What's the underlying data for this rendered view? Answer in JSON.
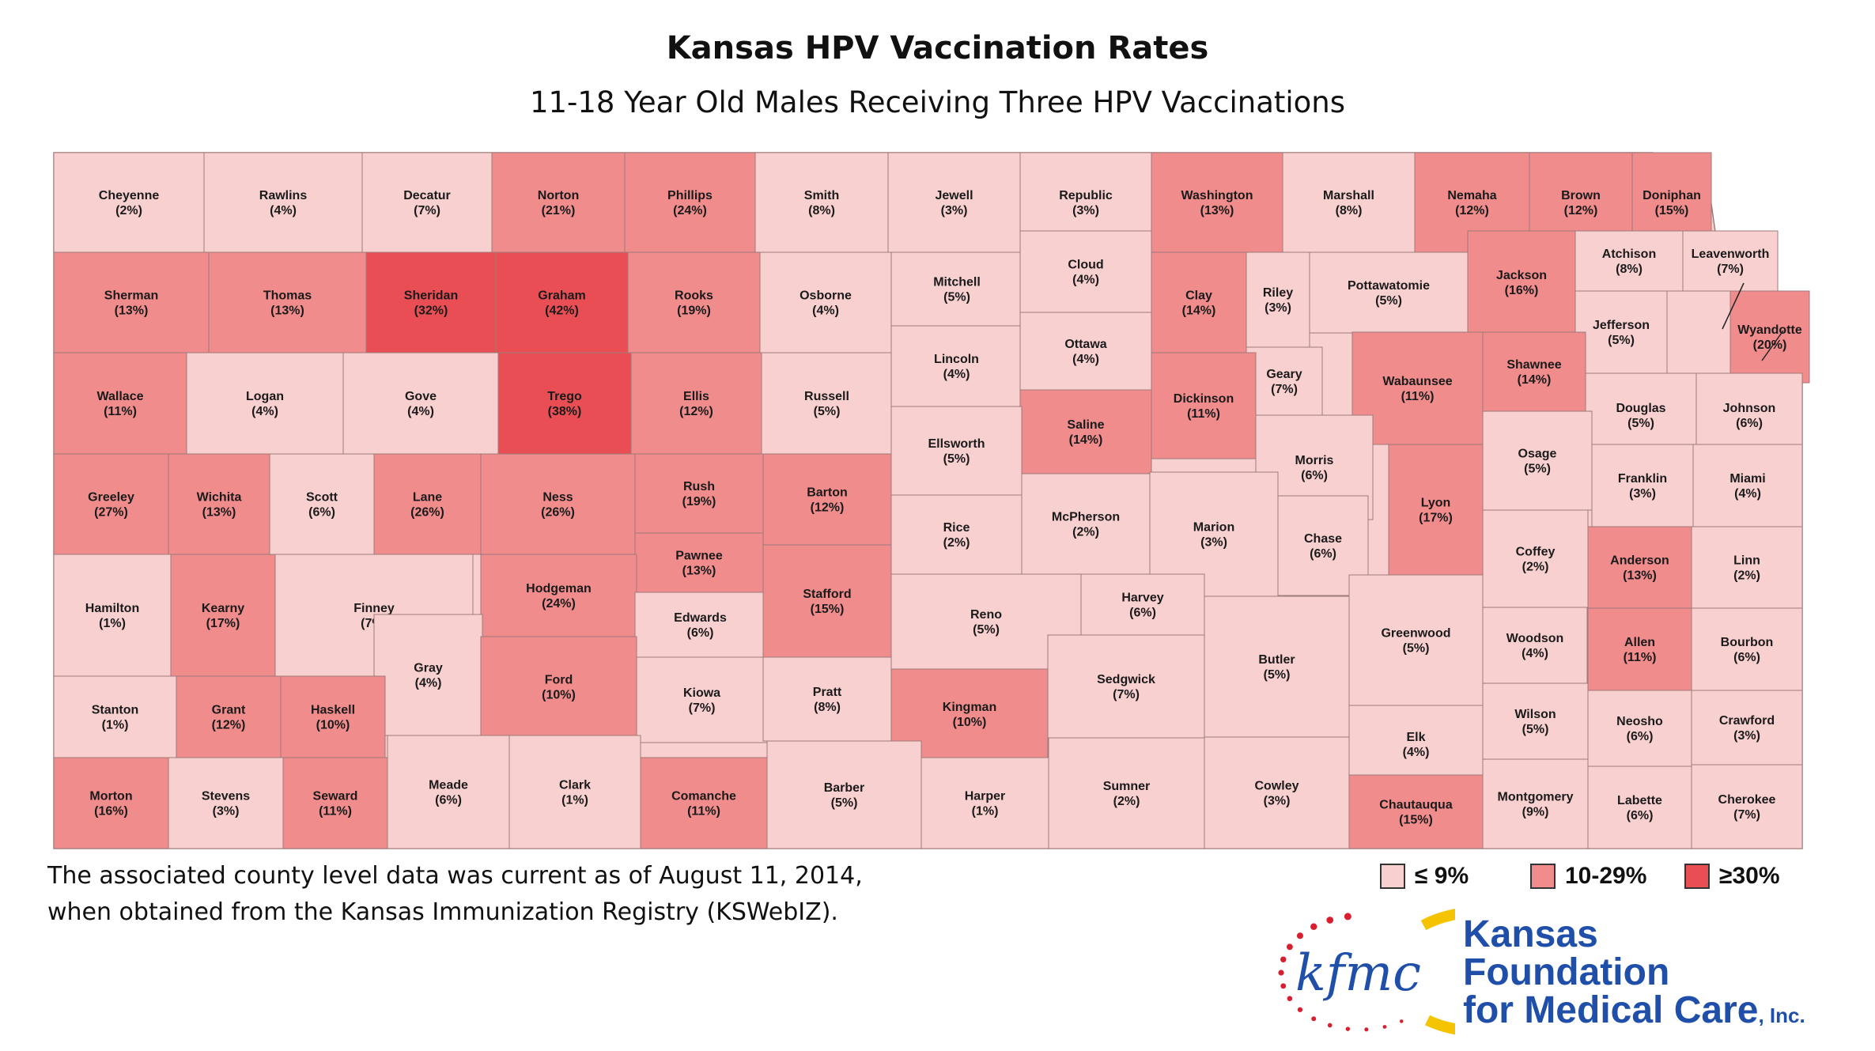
{
  "title": "Kansas HPV Vaccination Rates",
  "subtitle": "11-18 Year Old Males Receiving Three HPV Vaccinations",
  "note_line1": "The associated county level data was current as of August 11, 2014,",
  "note_line2": "when obtained from the Kansas Immunization Registry (KSWebIZ).",
  "colors": {
    "low": "#f9d0d0",
    "mid": "#f08c8c",
    "high": "#e84e54",
    "border": "#9e7a7a",
    "logo_blue": "#1f4fa8",
    "logo_red": "#d91f2f",
    "logo_yellow": "#f5c400"
  },
  "legend": [
    {
      "label": "≤  9%",
      "class": "low"
    },
    {
      "label": "10-29%",
      "class": "mid"
    },
    {
      "label": "≥30%",
      "class": "high"
    }
  ],
  "logo": {
    "mark": "kfmc",
    "line1": "Kansas",
    "line2": "Foundation",
    "line3": "for Medical Care",
    "line3_suffix": ", Inc."
  },
  "counties": [
    {
      "name": "Cheyenne",
      "pct": 2
    },
    {
      "name": "Rawlins",
      "pct": 4
    },
    {
      "name": "Decatur",
      "pct": 7
    },
    {
      "name": "Norton",
      "pct": 21
    },
    {
      "name": "Phillips",
      "pct": 24
    },
    {
      "name": "Smith",
      "pct": 8
    },
    {
      "name": "Jewell",
      "pct": 3
    },
    {
      "name": "Republic",
      "pct": 3
    },
    {
      "name": "Washington",
      "pct": 13
    },
    {
      "name": "Marshall",
      "pct": 8
    },
    {
      "name": "Nemaha",
      "pct": 12
    },
    {
      "name": "Brown",
      "pct": 12
    },
    {
      "name": "Doniphan",
      "pct": 15
    },
    {
      "name": "Sherman",
      "pct": 13
    },
    {
      "name": "Thomas",
      "pct": 13
    },
    {
      "name": "Sheridan",
      "pct": 32
    },
    {
      "name": "Graham",
      "pct": 42
    },
    {
      "name": "Rooks",
      "pct": 19
    },
    {
      "name": "Osborne",
      "pct": 4
    },
    {
      "name": "Mitchell",
      "pct": 5
    },
    {
      "name": "Cloud",
      "pct": 4
    },
    {
      "name": "Clay",
      "pct": 14
    },
    {
      "name": "Riley",
      "pct": 3
    },
    {
      "name": "Pottawatomie",
      "pct": 5
    },
    {
      "name": "Jackson",
      "pct": 16
    },
    {
      "name": "Atchison",
      "pct": 8
    },
    {
      "name": "Leavenworth",
      "pct": 7
    },
    {
      "name": "Jefferson",
      "pct": 5
    },
    {
      "name": "Wyandotte",
      "pct": 20
    },
    {
      "name": "Wallace",
      "pct": 11
    },
    {
      "name": "Logan",
      "pct": 4
    },
    {
      "name": "Gove",
      "pct": 4
    },
    {
      "name": "Trego",
      "pct": 38
    },
    {
      "name": "Ellis",
      "pct": 12
    },
    {
      "name": "Russell",
      "pct": 5
    },
    {
      "name": "Lincoln",
      "pct": 4
    },
    {
      "name": "Ottawa",
      "pct": 4
    },
    {
      "name": "Geary",
      "pct": 7
    },
    {
      "name": "Dickinson",
      "pct": 11
    },
    {
      "name": "Wabaunsee",
      "pct": 11
    },
    {
      "name": "Shawnee",
      "pct": 14
    },
    {
      "name": "Douglas",
      "pct": 5
    },
    {
      "name": "Johnson",
      "pct": 6
    },
    {
      "name": "Saline",
      "pct": 14
    },
    {
      "name": "Ellsworth",
      "pct": 5
    },
    {
      "name": "Morris",
      "pct": 6
    },
    {
      "name": "Osage",
      "pct": 5
    },
    {
      "name": "Franklin",
      "pct": 3
    },
    {
      "name": "Miami",
      "pct": 4
    },
    {
      "name": "Greeley",
      "pct": 27
    },
    {
      "name": "Wichita",
      "pct": 13
    },
    {
      "name": "Scott",
      "pct": 6
    },
    {
      "name": "Lane",
      "pct": 26
    },
    {
      "name": "Ness",
      "pct": 26
    },
    {
      "name": "Rush",
      "pct": 19
    },
    {
      "name": "Barton",
      "pct": 12
    },
    {
      "name": "Lyon",
      "pct": 17
    },
    {
      "name": "Rice",
      "pct": 2
    },
    {
      "name": "McPherson",
      "pct": 2
    },
    {
      "name": "Marion",
      "pct": 3
    },
    {
      "name": "Chase",
      "pct": 6
    },
    {
      "name": "Coffey",
      "pct": 2
    },
    {
      "name": "Anderson",
      "pct": 13
    },
    {
      "name": "Linn",
      "pct": 2
    },
    {
      "name": "Pawnee",
      "pct": 13
    },
    {
      "name": "Hamilton",
      "pct": 1
    },
    {
      "name": "Kearny",
      "pct": 17
    },
    {
      "name": "Finney",
      "pct": 7
    },
    {
      "name": "Hodgeman",
      "pct": 24
    },
    {
      "name": "Edwards",
      "pct": 6
    },
    {
      "name": "Stafford",
      "pct": 15
    },
    {
      "name": "Reno",
      "pct": 5
    },
    {
      "name": "Harvey",
      "pct": 6
    },
    {
      "name": "Butler",
      "pct": 5
    },
    {
      "name": "Greenwood",
      "pct": 5
    },
    {
      "name": "Woodson",
      "pct": 4
    },
    {
      "name": "Allen",
      "pct": 11
    },
    {
      "name": "Bourbon",
      "pct": 6
    },
    {
      "name": "Gray",
      "pct": 4
    },
    {
      "name": "Ford",
      "pct": 10
    },
    {
      "name": "Kiowa",
      "pct": 7
    },
    {
      "name": "Pratt",
      "pct": 8
    },
    {
      "name": "Sedgwick",
      "pct": 7
    },
    {
      "name": "Stanton",
      "pct": 1
    },
    {
      "name": "Grant",
      "pct": 12
    },
    {
      "name": "Haskell",
      "pct": 10
    },
    {
      "name": "Kingman",
      "pct": 10
    },
    {
      "name": "Wilson",
      "pct": 5
    },
    {
      "name": "Neosho",
      "pct": 6
    },
    {
      "name": "Crawford",
      "pct": 3
    },
    {
      "name": "Elk",
      "pct": 4
    },
    {
      "name": "Morton",
      "pct": 16
    },
    {
      "name": "Stevens",
      "pct": 3
    },
    {
      "name": "Seward",
      "pct": 11
    },
    {
      "name": "Meade",
      "pct": 6
    },
    {
      "name": "Clark",
      "pct": 1
    },
    {
      "name": "Comanche",
      "pct": 11
    },
    {
      "name": "Barber",
      "pct": 5
    },
    {
      "name": "Harper",
      "pct": 1
    },
    {
      "name": "Sumner",
      "pct": 2
    },
    {
      "name": "Cowley",
      "pct": 3
    },
    {
      "name": "Chautauqua",
      "pct": 15
    },
    {
      "name": "Montgomery",
      "pct": 9
    },
    {
      "name": "Labette",
      "pct": 6
    },
    {
      "name": "Cherokee",
      "pct": 7
    }
  ]
}
